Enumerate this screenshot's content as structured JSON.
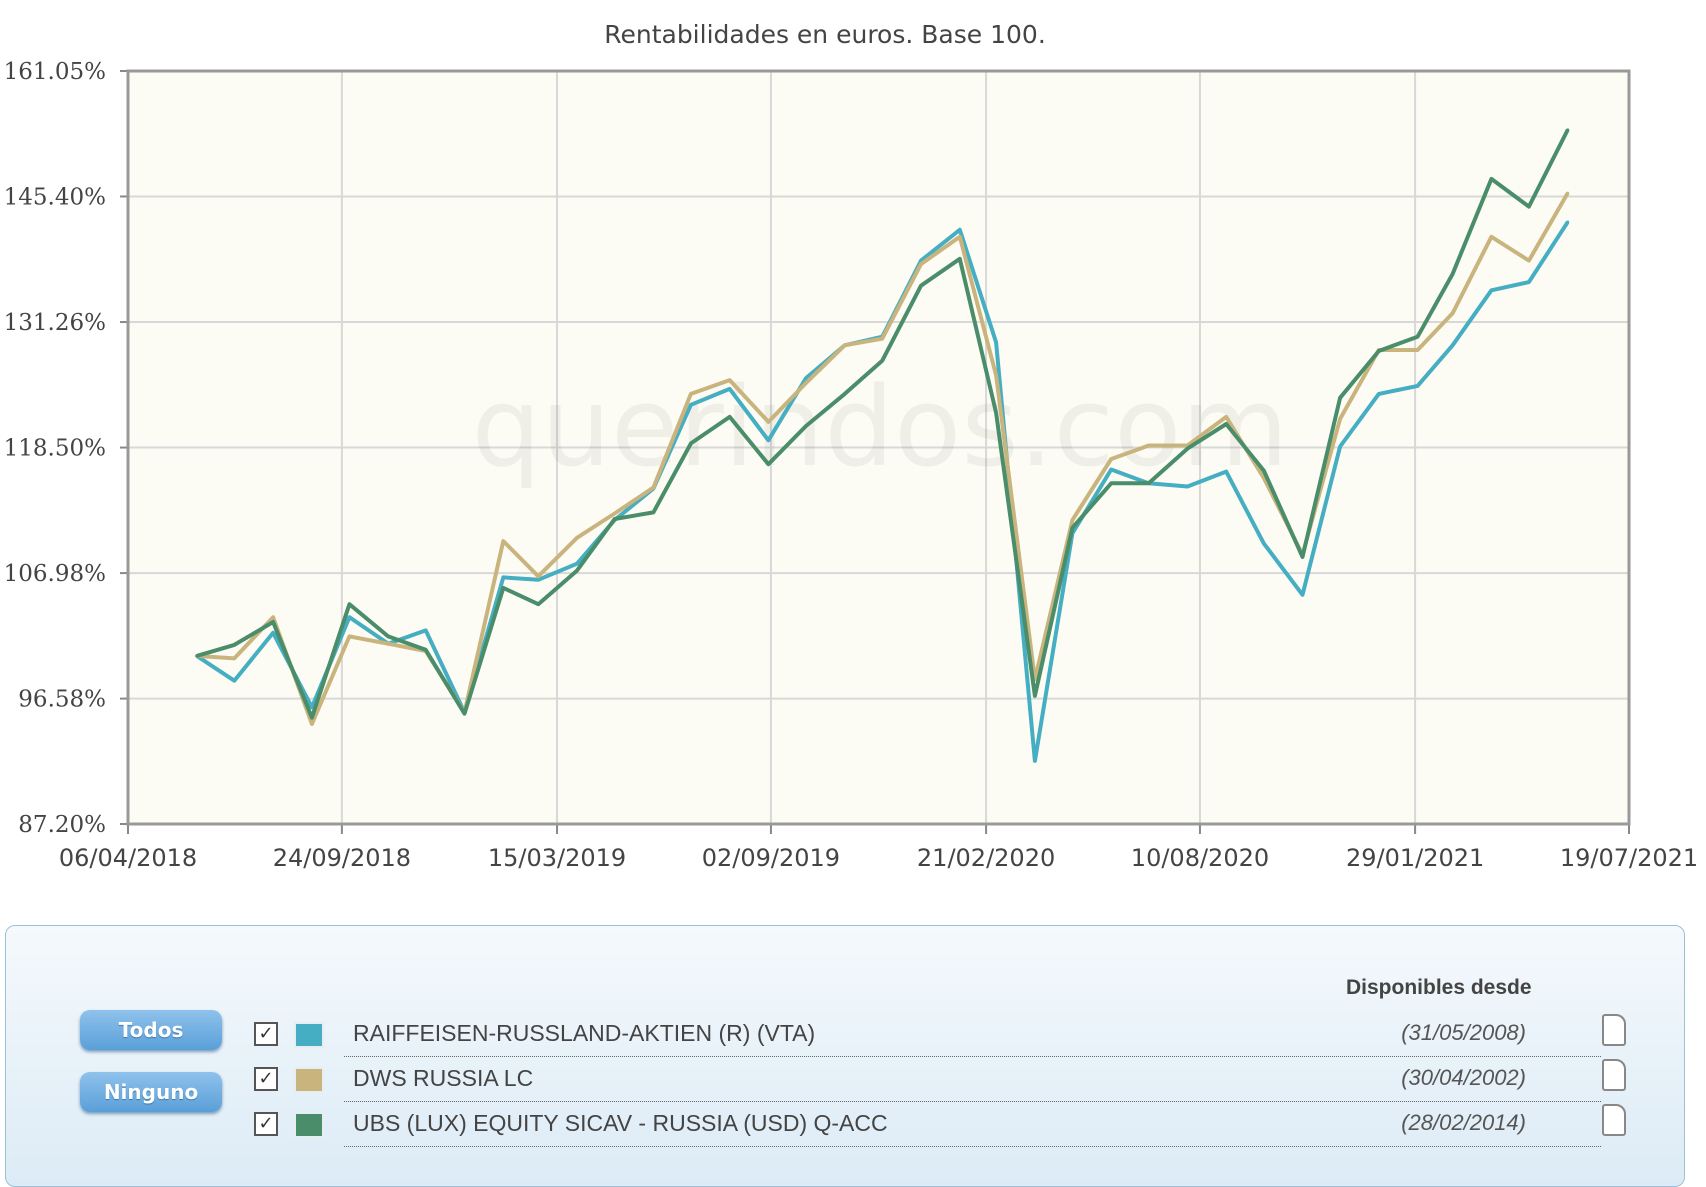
{
  "chart_data": {
    "type": "line",
    "title": "Rentabilidades en euros. Base 100.",
    "y_scale": "log",
    "ylim": [
      87.2,
      161.05
    ],
    "y_ticks": [
      "87.20%",
      "96.58%",
      "106.98%",
      "118.50%",
      "131.26%",
      "145.40%",
      "161.05%"
    ],
    "y_tick_values": [
      87.2,
      96.58,
      106.98,
      118.5,
      131.26,
      145.4,
      161.05
    ],
    "xlim": [
      "2018-04-06",
      "2021-07-19"
    ],
    "x_ticks": [
      "06/04/2018",
      "24/09/2018",
      "15/03/2019",
      "02/09/2019",
      "21/02/2020",
      "10/08/2020",
      "29/01/2021",
      "19/07/2021"
    ],
    "x_tick_dates": [
      "2018-04-06",
      "2018-09-24",
      "2019-03-15",
      "2019-09-02",
      "2020-02-21",
      "2020-08-10",
      "2021-01-29",
      "2021-07-19"
    ],
    "grid": true,
    "watermark": "querindos.com",
    "x": [
      "2018-05-31",
      "2018-06-30",
      "2018-07-31",
      "2018-08-31",
      "2018-09-30",
      "2018-10-31",
      "2018-11-30",
      "2018-12-31",
      "2019-01-31",
      "2019-02-28",
      "2019-03-31",
      "2019-04-30",
      "2019-05-31",
      "2019-06-30",
      "2019-07-31",
      "2019-08-31",
      "2019-09-30",
      "2019-10-31",
      "2019-11-30",
      "2019-12-31",
      "2020-01-31",
      "2020-02-29",
      "2020-03-31",
      "2020-04-30",
      "2020-05-31",
      "2020-06-30",
      "2020-07-31",
      "2020-08-31",
      "2020-09-30",
      "2020-10-31",
      "2020-11-30",
      "2020-12-31",
      "2021-01-31",
      "2021-02-28",
      "2021-03-31",
      "2021-04-30",
      "2021-05-31"
    ],
    "series": [
      {
        "name": "RAIFFEISEN-RUSSLAND-AKTIEN (R) (VTA)",
        "color": "#45aec2",
        "values": [
          100.0,
          98.0,
          101.9,
          95.9,
          103.2,
          101.0,
          102.1,
          95.5,
          106.6,
          106.4,
          107.8,
          111.7,
          114.6,
          122.7,
          124.3,
          119.2,
          125.4,
          128.8,
          129.7,
          138.0,
          141.5,
          129.1,
          91.8,
          110.5,
          116.4,
          115.1,
          114.8,
          116.2,
          109.6,
          105.1,
          118.6,
          123.8,
          124.6,
          128.8,
          134.7,
          135.6,
          142.4
        ]
      },
      {
        "name": "DWS RUSSIA LC",
        "color": "#c9b47e",
        "values": [
          100.0,
          99.8,
          103.2,
          94.6,
          101.6,
          101.0,
          100.4,
          95.5,
          109.8,
          106.7,
          110.1,
          112.3,
          114.7,
          123.8,
          125.2,
          121.0,
          124.9,
          128.8,
          129.5,
          137.6,
          140.7,
          125.7,
          98.1,
          111.7,
          117.4,
          118.7,
          118.7,
          121.5,
          115.6,
          108.6,
          121.3,
          128.3,
          128.3,
          132.2,
          140.7,
          138.0,
          145.8
        ]
      },
      {
        "name": "UBS (LUX) EQUITY SICAV - RUSSIA (USD) Q-ACC",
        "color": "#4a8d6a",
        "values": [
          100.0,
          100.9,
          102.8,
          95.1,
          104.3,
          101.6,
          100.5,
          95.4,
          105.7,
          104.3,
          107.2,
          111.8,
          112.4,
          118.9,
          121.5,
          116.9,
          120.6,
          123.8,
          127.2,
          135.2,
          138.2,
          121.9,
          96.8,
          111.0,
          115.1,
          115.1,
          118.4,
          120.8,
          116.3,
          108.4,
          123.4,
          128.2,
          129.7,
          136.5,
          147.5,
          144.2,
          153.5
        ]
      }
    ]
  },
  "legend": {
    "todos_label": "Todos",
    "ninguno_label": "Ninguno",
    "header": "Disponibles desde",
    "items": [
      {
        "label": "RAIFFEISEN-RUSSLAND-AKTIEN (R) (VTA)",
        "since": "(31/05/2008)",
        "checked": true,
        "color": "#45aec2"
      },
      {
        "label": "DWS RUSSIA LC",
        "since": "(30/04/2002)",
        "checked": true,
        "color": "#c9b47e"
      },
      {
        "label": "UBS (LUX) EQUITY SICAV - RUSSIA (USD) Q-ACC",
        "since": "(28/02/2014)",
        "checked": true,
        "color": "#4a8d6a"
      }
    ]
  }
}
